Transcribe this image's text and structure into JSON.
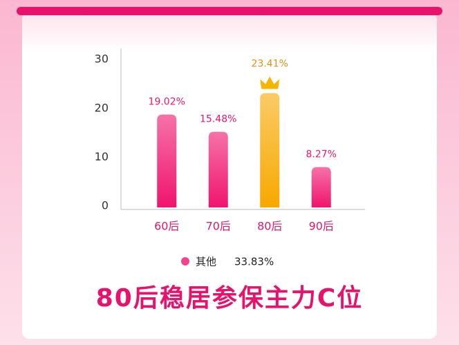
{
  "chart_data": {
    "type": "bar",
    "categories": [
      "60后",
      "70后",
      "80后",
      "90后"
    ],
    "values": [
      19.02,
      15.48,
      23.41,
      8.27
    ],
    "value_labels": [
      "19.02%",
      "15.48%",
      "23.41%",
      "8.27%"
    ],
    "colors": [
      "#f0146e",
      "#f0146e",
      "#f7a800",
      "#f0146e"
    ],
    "ylim": [
      0,
      32
    ],
    "yticks": [
      0,
      10,
      20,
      30
    ],
    "legend": {
      "name": "其他",
      "value": 33.83,
      "value_label": "33.83%",
      "color": "#f0146e"
    },
    "title": "80后稳居参保主力C位"
  }
}
